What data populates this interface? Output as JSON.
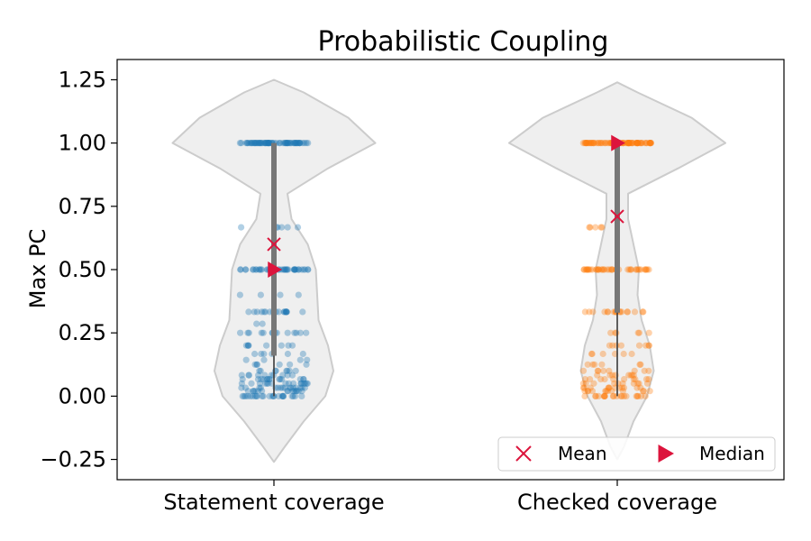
{
  "chart_data": {
    "type": "violin",
    "title": "Probabilistic Coupling",
    "xlabel": "",
    "ylabel": "Max PC",
    "ylim": [
      -0.33,
      1.33
    ],
    "yticks": [
      -0.25,
      0.0,
      0.25,
      0.5,
      0.75,
      1.0,
      1.25
    ],
    "ytick_labels": [
      "−0.25",
      "0.00",
      "0.25",
      "0.50",
      "0.75",
      "1.00",
      "1.25"
    ],
    "grid": false,
    "legend_position": "bottom-right",
    "legend": [
      {
        "label": "Mean",
        "marker": "x",
        "color": "#dc143c"
      },
      {
        "label": "Median",
        "marker": "triangle-right",
        "color": "#dc143c"
      }
    ],
    "categories": [
      "Statement coverage",
      "Checked coverage"
    ],
    "violin_color": "#efefef",
    "violin_edge_color": "#cccccc",
    "groups": [
      {
        "name": "Statement coverage",
        "color": "#1f77b4",
        "mean": 0.6,
        "median": 0.5,
        "q1": 0.16,
        "q3": 1.0,
        "min": 0.0,
        "max": 1.0,
        "density": [
          [
            -0.26,
            0.0
          ],
          [
            -0.2,
            0.08
          ],
          [
            -0.1,
            0.22
          ],
          [
            0.0,
            0.38
          ],
          [
            0.1,
            0.44
          ],
          [
            0.2,
            0.4
          ],
          [
            0.3,
            0.33
          ],
          [
            0.4,
            0.32
          ],
          [
            0.5,
            0.31
          ],
          [
            0.6,
            0.25
          ],
          [
            0.7,
            0.13
          ],
          [
            0.8,
            0.1
          ],
          [
            0.9,
            0.4
          ],
          [
            1.0,
            0.75
          ],
          [
            1.1,
            0.55
          ],
          [
            1.2,
            0.22
          ],
          [
            1.25,
            0.0
          ]
        ],
        "points": [
          {
            "y": 1.0,
            "n": 70
          },
          {
            "y": 0.667,
            "n": 6
          },
          {
            "y": 0.5,
            "n": 44
          },
          {
            "y": 0.4,
            "n": 4
          },
          {
            "y": 0.333,
            "n": 18
          },
          {
            "y": 0.286,
            "n": 2
          },
          {
            "y": 0.25,
            "n": 14
          },
          {
            "y": 0.2,
            "n": 8
          },
          {
            "y": 0.167,
            "n": 6
          },
          {
            "y": 0.143,
            "n": 4
          },
          {
            "y": 0.125,
            "n": 6
          },
          {
            "y": 0.1,
            "n": 8
          },
          {
            "y": 0.083,
            "n": 10
          },
          {
            "y": 0.067,
            "n": 14
          },
          {
            "y": 0.05,
            "n": 16
          },
          {
            "y": 0.033,
            "n": 16
          },
          {
            "y": 0.02,
            "n": 14
          },
          {
            "y": 0.0,
            "n": 24
          }
        ]
      },
      {
        "name": "Checked coverage",
        "color": "#ff7f0e",
        "mean": 0.71,
        "median": 1.0,
        "q1": 0.33,
        "q3": 1.0,
        "min": 0.0,
        "max": 1.0,
        "density": [
          [
            -0.25,
            0.0
          ],
          [
            -0.2,
            0.05
          ],
          [
            -0.1,
            0.12
          ],
          [
            0.0,
            0.22
          ],
          [
            0.1,
            0.27
          ],
          [
            0.2,
            0.24
          ],
          [
            0.3,
            0.18
          ],
          [
            0.4,
            0.15
          ],
          [
            0.5,
            0.16
          ],
          [
            0.6,
            0.12
          ],
          [
            0.7,
            0.08
          ],
          [
            0.8,
            0.08
          ],
          [
            0.9,
            0.45
          ],
          [
            1.0,
            0.8
          ],
          [
            1.1,
            0.55
          ],
          [
            1.2,
            0.15
          ],
          [
            1.24,
            0.0
          ]
        ],
        "points": [
          {
            "y": 1.0,
            "n": 80
          },
          {
            "y": 0.667,
            "n": 5
          },
          {
            "y": 0.5,
            "n": 40
          },
          {
            "y": 0.333,
            "n": 18
          },
          {
            "y": 0.25,
            "n": 6
          },
          {
            "y": 0.2,
            "n": 8
          },
          {
            "y": 0.167,
            "n": 6
          },
          {
            "y": 0.125,
            "n": 6
          },
          {
            "y": 0.1,
            "n": 8
          },
          {
            "y": 0.083,
            "n": 8
          },
          {
            "y": 0.067,
            "n": 10
          },
          {
            "y": 0.05,
            "n": 10
          },
          {
            "y": 0.033,
            "n": 12
          },
          {
            "y": 0.02,
            "n": 12
          },
          {
            "y": 0.0,
            "n": 20
          }
        ]
      }
    ]
  }
}
